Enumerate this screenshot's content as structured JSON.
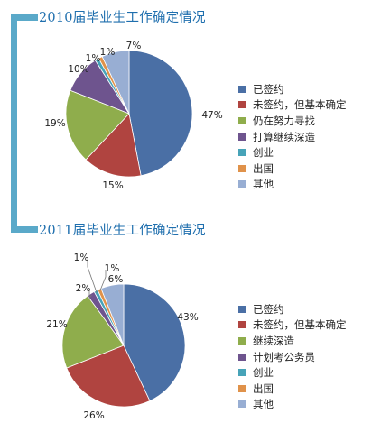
{
  "colors": [
    "#4a6fa5",
    "#b04440",
    "#8fad4c",
    "#6e548e",
    "#47a3b8",
    "#e0924a",
    "#98aed3"
  ],
  "chart_data": [
    {
      "type": "pie",
      "title": "2010届毕业生工作确定情况",
      "slices": [
        {
          "label": "已签约",
          "value": 47,
          "text": "47%"
        },
        {
          "label": "未签约，但基本确定",
          "value": 15,
          "text": "15%"
        },
        {
          "label": "仍在努力寻找",
          "value": 19,
          "text": "19%"
        },
        {
          "label": "打算继续深造",
          "value": 10,
          "text": "10%"
        },
        {
          "label": "创业",
          "value": 1,
          "text": "1%"
        },
        {
          "label": "出国",
          "value": 1,
          "text": "1%"
        },
        {
          "label": "其他",
          "value": 7,
          "text": "7%"
        }
      ],
      "legend_position": "right"
    },
    {
      "type": "pie",
      "title": "2011届毕业生工作确定情况",
      "slices": [
        {
          "label": "已签约",
          "value": 43,
          "text": "43%"
        },
        {
          "label": "未签约，但基本确定",
          "value": 26,
          "text": "26%"
        },
        {
          "label": "继续深造",
          "value": 21,
          "text": "21%"
        },
        {
          "label": "计划考公务员",
          "value": 2,
          "text": "2%"
        },
        {
          "label": "创业",
          "value": 1,
          "text": "1%"
        },
        {
          "label": "出国",
          "value": 1,
          "text": "1%"
        },
        {
          "label": "其他",
          "value": 6,
          "text": "6%"
        }
      ],
      "legend_position": "right"
    }
  ]
}
